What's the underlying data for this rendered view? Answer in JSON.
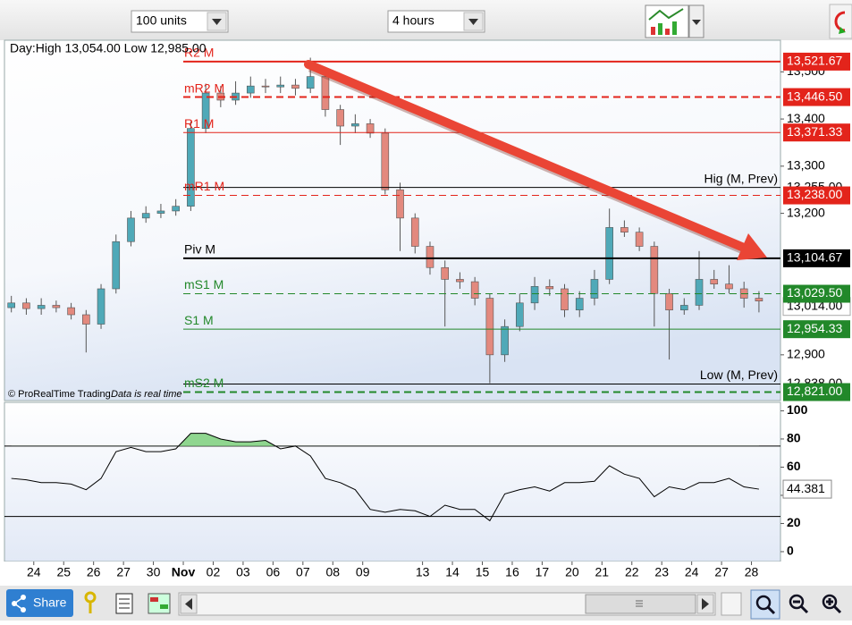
{
  "toolbar": {
    "units": "100 units",
    "timeframe": "4 hours"
  },
  "footer": {
    "share": "Share"
  },
  "chart_data": [
    {
      "type": "candlestick",
      "info": "Day:High 13,054.00 Low 12,985.00",
      "copyright": "© ProRealTime Trading",
      "data_note": "Data is real time",
      "x": [
        -0.75,
        -0.25,
        0.25,
        0.75,
        1.25,
        1.75,
        2.25,
        2.75,
        3.25,
        3.75,
        4.25,
        4.75,
        5.25,
        5.75,
        6.25,
        6.75,
        7.25,
        7.75,
        8.25,
        8.75,
        9.25,
        9.75,
        10.25,
        10.75,
        11.25,
        11.75,
        12.25,
        12.75,
        13.25,
        13.75,
        14.25,
        14.75,
        15.25,
        15.75,
        16.25,
        16.75,
        17.25,
        17.75,
        18.25,
        18.75,
        19.25,
        19.75,
        20.25,
        20.75,
        21.25,
        21.75,
        22.25,
        22.75,
        23.25,
        23.75,
        24.25
      ],
      "open": [
        13000,
        13010,
        12998,
        13005,
        13000,
        12985,
        12965,
        13040,
        13140,
        13190,
        13200,
        13205,
        13215,
        13380,
        13455,
        13440,
        13455,
        13470,
        13468,
        13472,
        13465,
        13490,
        13420,
        13385,
        13390,
        13370,
        13250,
        13190,
        13130,
        13085,
        13060,
        13055,
        13020,
        12900,
        12960,
        13010,
        13045,
        13040,
        12995,
        13020,
        13060,
        13170,
        13160,
        13130,
        13030,
        12995,
        13005,
        13060,
        13050,
        13040,
        13020
      ],
      "high": [
        13025,
        13020,
        13020,
        13015,
        13010,
        12995,
        13050,
        13155,
        13205,
        13215,
        13220,
        13230,
        13395,
        13475,
        13470,
        13480,
        13490,
        13485,
        13490,
        13485,
        13530,
        13500,
        13430,
        13410,
        13400,
        13380,
        13265,
        13200,
        13140,
        13100,
        13075,
        13065,
        13030,
        12975,
        13030,
        13065,
        13060,
        13050,
        13035,
        13080,
        13210,
        13185,
        13170,
        13140,
        13040,
        13020,
        13120,
        13080,
        13090,
        13055,
        13035
      ],
      "low": [
        12990,
        12985,
        12985,
        12990,
        12975,
        12905,
        12955,
        13030,
        13130,
        13180,
        13190,
        13195,
        13205,
        13370,
        13425,
        13430,
        13445,
        13455,
        13455,
        13450,
        13455,
        13405,
        13345,
        13370,
        13360,
        13240,
        13120,
        13115,
        13070,
        12960,
        13040,
        13005,
        12840,
        12885,
        12950,
        12995,
        13025,
        12980,
        12980,
        13005,
        13050,
        13150,
        13120,
        12960,
        12890,
        12985,
        12995,
        13040,
        13030,
        13000,
        12990
      ],
      "close": [
        13010,
        12998,
        13005,
        13000,
        12985,
        12965,
        13040,
        13140,
        13190,
        13200,
        13205,
        13215,
        13380,
        13455,
        13440,
        13455,
        13470,
        13468,
        13472,
        13465,
        13490,
        13420,
        13385,
        13390,
        13370,
        13250,
        13190,
        13130,
        13085,
        13060,
        13055,
        13020,
        12900,
        12960,
        13010,
        13045,
        13040,
        12995,
        13020,
        13060,
        13170,
        13160,
        13130,
        13030,
        12995,
        13005,
        13060,
        13050,
        13040,
        13020,
        13014
      ],
      "up_color": "#4fa9b8",
      "down_color": "#e3897e",
      "xlim": [
        -0.98,
        24.97
      ],
      "xticks": [
        {
          "value": 0,
          "label": "24"
        },
        {
          "value": 1,
          "label": "25"
        },
        {
          "value": 2,
          "label": "26"
        },
        {
          "value": 3,
          "label": "27"
        },
        {
          "value": 4,
          "label": "30"
        },
        {
          "value": 5,
          "label": "Nov"
        },
        {
          "value": 6,
          "label": "02"
        },
        {
          "value": 7,
          "label": "03"
        },
        {
          "value": 8,
          "label": "06"
        },
        {
          "value": 9,
          "label": "07"
        },
        {
          "value": 10,
          "label": "08"
        },
        {
          "value": 11,
          "label": "09"
        },
        {
          "value": 13,
          "label": "13"
        },
        {
          "value": 14,
          "label": "14"
        },
        {
          "value": 15,
          "label": "15"
        },
        {
          "value": 16,
          "label": "16"
        },
        {
          "value": 17,
          "label": "17"
        },
        {
          "value": 18,
          "label": "20"
        },
        {
          "value": 19,
          "label": "21"
        },
        {
          "value": 20,
          "label": "22"
        },
        {
          "value": 21,
          "label": "23"
        },
        {
          "value": 22,
          "label": "24"
        },
        {
          "value": 23,
          "label": "27"
        },
        {
          "value": 24,
          "label": "28"
        }
      ],
      "ylim": [
        12803,
        13567
      ],
      "yticks": [
        {
          "value": 13500,
          "label": "13,500"
        },
        {
          "value": 13400,
          "label": "13,400"
        },
        {
          "value": 13300,
          "label": "13,300"
        },
        {
          "value": 13200,
          "label": "13,200"
        },
        {
          "value": 12900,
          "label": "12,900"
        }
      ],
      "last": {
        "value": 13014,
        "label": "13,014.00"
      },
      "levels": [
        {
          "name": "R2 M",
          "value": 13521.67,
          "label": "13,521.67",
          "color": "#e3241b",
          "line": "solid",
          "weight": 2,
          "label_side": "left",
          "boxed": true
        },
        {
          "name": "mR2 M",
          "value": 13446.5,
          "label": "13,446.50",
          "color": "#e3241b",
          "line": "dashed",
          "weight": 2,
          "label_side": "left",
          "boxed": true
        },
        {
          "name": "R1 M",
          "value": 13371.33,
          "label": "13,371.33",
          "color": "#e3241b",
          "line": "solid",
          "weight": 1,
          "label_side": "left",
          "boxed": true
        },
        {
          "name": "Hig (M, Prev)",
          "value": 13255,
          "label": "13,255.00",
          "color": "#000000",
          "line": "solid",
          "weight": 1,
          "label_side": "right",
          "boxed": false
        },
        {
          "name": "mR1 M",
          "value": 13238,
          "label": "13,238.00",
          "color": "#e3241b",
          "line": "dashed",
          "weight": 1,
          "label_side": "left",
          "boxed": true
        },
        {
          "name": "Piv M",
          "value": 13104.67,
          "label": "13,104.67",
          "color": "#000000",
          "line": "solid",
          "weight": 2,
          "label_side": "left",
          "boxed": true
        },
        {
          "name": "mS1 M",
          "value": 13029.5,
          "label": "13,029.50",
          "color": "#22882a",
          "line": "dashed",
          "weight": 1,
          "label_side": "left",
          "boxed": true
        },
        {
          "name": "S1 M",
          "value": 12954.33,
          "label": "12,954.33",
          "color": "#22882a",
          "line": "solid",
          "weight": 1,
          "label_side": "left",
          "boxed": true
        },
        {
          "name": "Low (M, Prev)",
          "value": 12838,
          "label": "12,838.00",
          "color": "#000000",
          "line": "solid",
          "weight": 1,
          "label_side": "right",
          "boxed": false
        },
        {
          "name": "mS2 M",
          "value": 12821,
          "label": "12,821.00",
          "color": "#22882a",
          "line": "dashed",
          "weight": 2,
          "label_side": "left",
          "boxed": true
        }
      ]
    },
    {
      "type": "line",
      "values": [
        52,
        51,
        49,
        49,
        48,
        44,
        52,
        71,
        74,
        71,
        71,
        73,
        84,
        84,
        80,
        78,
        78,
        79,
        73,
        75,
        68,
        52,
        49,
        44,
        30,
        28,
        30,
        29,
        25,
        33,
        30,
        30,
        22,
        41,
        44,
        46,
        43,
        49,
        49,
        50,
        61,
        55,
        52,
        39,
        46,
        44,
        49,
        49,
        52,
        46,
        44.381
      ],
      "color": "#000000",
      "fill_color": "#8fd68f",
      "hlines": [
        75,
        25
      ],
      "ylim": [
        -7,
        106
      ],
      "yticks": [
        100,
        80,
        60,
        40,
        20,
        0
      ]
    }
  ]
}
